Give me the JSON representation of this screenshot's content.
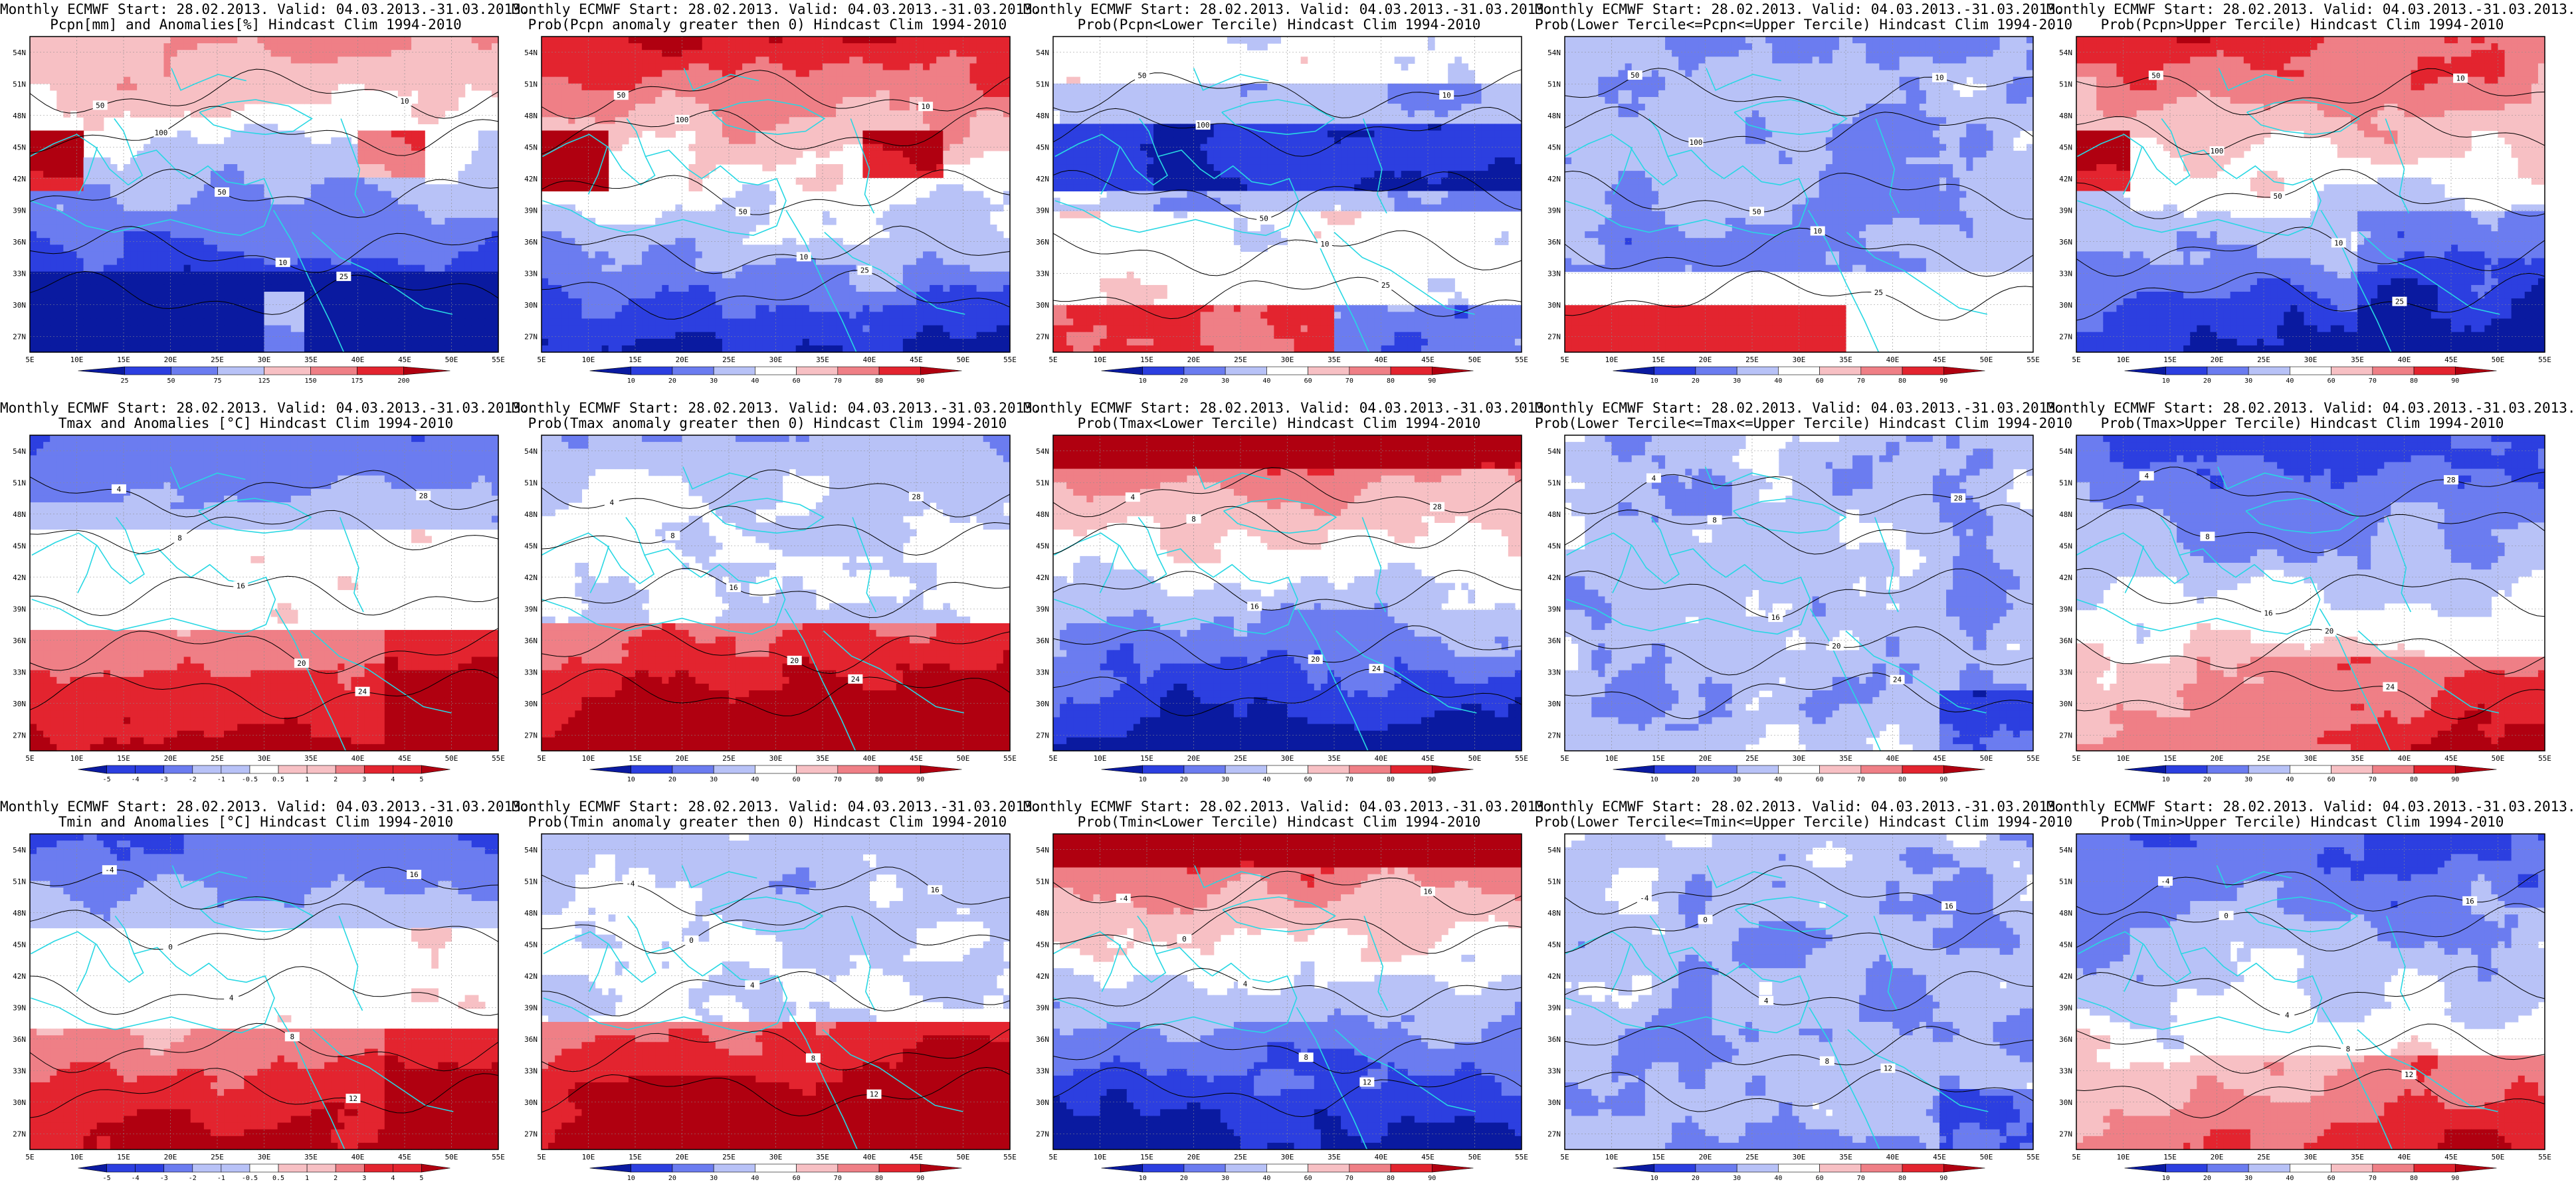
{
  "layout": {
    "rows": 3,
    "cols": 5
  },
  "axes": {
    "y_ticks": [
      "54N",
      "51N",
      "48N",
      "45N",
      "42N",
      "39N",
      "36N",
      "33N",
      "30N",
      "27N"
    ],
    "x_ticks": [
      "5E",
      "10E",
      "15E",
      "20E",
      "25E",
      "30E",
      "35E",
      "40E",
      "45E",
      "50E",
      "55E"
    ]
  },
  "colors": {
    "dark_blue": "#0a1aa0",
    "blue": "#2c3fe0",
    "mid_blue": "#6b7cf0",
    "light_blue": "#b8c2f7",
    "white": "#ffffff",
    "light_red": "#f7c0c4",
    "mid_red": "#ef7f86",
    "red": "#e3242f",
    "dark_red": "#b00010",
    "coast": "#28d7e3",
    "contour": "#000000"
  },
  "colorbars": {
    "pcpn_anom": [
      "25",
      "50",
      "75",
      "125",
      "150",
      "175",
      "200"
    ],
    "prob": [
      "10",
      "20",
      "30",
      "40",
      "60",
      "70",
      "80",
      "90"
    ],
    "temp_anom": [
      "-5",
      "-4",
      "-3",
      "-2",
      "-1",
      "-0.5",
      "0.5",
      "1",
      "2",
      "3",
      "4",
      "5"
    ]
  },
  "contour_labels": {
    "pcpn": [
      "50",
      "100",
      "50",
      "10",
      "25",
      "10"
    ],
    "tmax": [
      "4",
      "8",
      "16",
      "20",
      "24",
      "28"
    ],
    "tmin": [
      "-4",
      "0",
      "4",
      "8",
      "12",
      "16"
    ]
  },
  "panels": [
    {
      "title1": "Monthly ECMWF Start: 28.02.2013. Valid: 04.03.2013.-31.03.2013.",
      "title2": "Pcpn[mm] and Anomalies[%] Hindcast Clim 1994-2010",
      "row": 0,
      "scheme": "pcpn_anom",
      "colorbar": "pcpn_anom"
    },
    {
      "title1": "Monthly ECMWF Start: 28.02.2013. Valid: 04.03.2013.-31.03.2013.",
      "title2": "Prob(Pcpn anomaly greater then 0) Hindcast Clim 1994-2010",
      "row": 0,
      "scheme": "pcpn_prob0",
      "colorbar": "prob"
    },
    {
      "title1": "Monthly ECMWF Start: 28.02.2013. Valid: 04.03.2013.-31.03.2013.",
      "title2": "Prob(Pcpn<Lower Tercile) Hindcast Clim 1994-2010",
      "row": 0,
      "scheme": "pcpn_lower",
      "colorbar": "prob"
    },
    {
      "title1": "Monthly ECMWF Start: 28.02.2013. Valid: 04.03.2013.-31.03.2013.",
      "title2": "Prob(Lower Tercile<=Pcpn<=Upper Tercile) Hindcast Clim 1994-2010",
      "row": 0,
      "scheme": "pcpn_middle",
      "colorbar": "prob"
    },
    {
      "title1": "Monthly ECMWF Start: 28.02.2013. Valid: 04.03.2013.-31.03.2013.",
      "title2": "Prob(Pcpn>Upper Tercile) Hindcast Clim 1994-2010",
      "row": 0,
      "scheme": "pcpn_upper",
      "colorbar": "prob"
    },
    {
      "title1": "Monthly ECMWF Start: 28.02.2013. Valid: 04.03.2013.-31.03.2013.",
      "title2": "Tmax and Anomalies [°C] Hindcast Clim 1994-2010",
      "row": 1,
      "scheme": "t_anom",
      "colorbar": "temp_anom"
    },
    {
      "title1": "Monthly ECMWF Start: 28.02.2013. Valid: 04.03.2013.-31.03.2013.",
      "title2": "Prob(Tmax anomaly greater then 0) Hindcast Clim 1994-2010",
      "row": 1,
      "scheme": "t_prob0",
      "colorbar": "prob"
    },
    {
      "title1": "Monthly ECMWF Start: 28.02.2013. Valid: 04.03.2013.-31.03.2013.",
      "title2": "Prob(Tmax<Lower Tercile) Hindcast Clim 1994-2010",
      "row": 1,
      "scheme": "t_lower",
      "colorbar": "prob"
    },
    {
      "title1": "Monthly ECMWF Start: 28.02.2013. Valid: 04.03.2013.-31.03.2013.",
      "title2": "Prob(Lower Tercile<=Tmax<=Upper Tercile) Hindcast Clim 1994-2010",
      "row": 1,
      "scheme": "t_middle",
      "colorbar": "prob"
    },
    {
      "title1": "Monthly ECMWF Start: 28.02.2013. Valid: 04.03.2013.-31.03.2013.",
      "title2": "Prob(Tmax>Upper Tercile) Hindcast Clim 1994-2010",
      "row": 1,
      "scheme": "t_upper",
      "colorbar": "prob"
    },
    {
      "title1": "Monthly ECMWF Start: 28.02.2013. Valid: 04.03.2013.-31.03.2013.",
      "title2": "Tmin and Anomalies [°C] Hindcast Clim 1994-2010",
      "row": 2,
      "scheme": "t_anom",
      "colorbar": "temp_anom"
    },
    {
      "title1": "Monthly ECMWF Start: 28.02.2013. Valid: 04.03.2013.-31.03.2013.",
      "title2": "Prob(Tmin anomaly greater then 0) Hindcast Clim 1994-2010",
      "row": 2,
      "scheme": "t_prob0",
      "colorbar": "prob"
    },
    {
      "title1": "Monthly ECMWF Start: 28.02.2013. Valid: 04.03.2013.-31.03.2013.",
      "title2": "Prob(Tmin<Lower Tercile) Hindcast Clim 1994-2010",
      "row": 2,
      "scheme": "t_lower",
      "colorbar": "prob"
    },
    {
      "title1": "Monthly ECMWF Start: 28.02.2013. Valid: 04.03.2013.-31.03.2013.",
      "title2": "Prob(Lower Tercile<=Tmin<=Upper Tercile) Hindcast Clim 1994-2010",
      "row": 2,
      "scheme": "t_middle",
      "colorbar": "prob"
    },
    {
      "title1": "Monthly ECMWF Start: 28.02.2013. Valid: 04.03.2013.-31.03.2013.",
      "title2": "Prob(Tmin>Upper Tercile) Hindcast Clim 1994-2010",
      "row": 2,
      "scheme": "t_upper",
      "colorbar": "prob"
    }
  ]
}
